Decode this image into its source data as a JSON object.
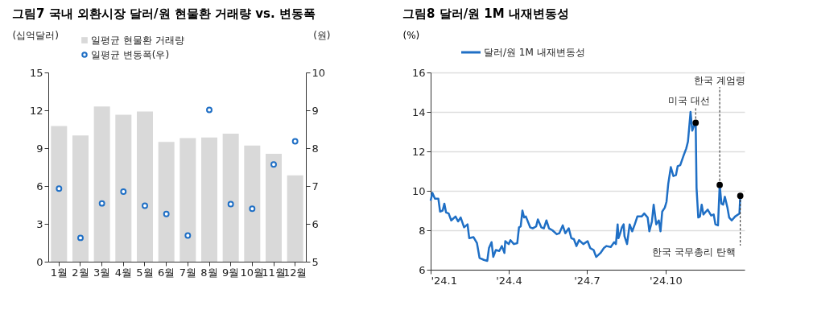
{
  "chart_data": [
    {
      "type": "bar",
      "title": "그림7 국내 외환시장 달러/원 현물환 거래량 vs. 변동폭",
      "ylabel": "(십억달러)",
      "y2label": "(원)",
      "categories": [
        "1월",
        "2월",
        "3월",
        "4월",
        "5월",
        "6월",
        "7월",
        "8월",
        "9월",
        "10월",
        "11월",
        "12월"
      ],
      "ylim": [
        0,
        15
      ],
      "yticks": [
        0,
        3,
        6,
        9,
        12,
        15
      ],
      "y2lim": [
        5,
        10
      ],
      "y2ticks": [
        5,
        6,
        7,
        8,
        9,
        10
      ],
      "series": [
        {
          "name": "일평균 현물환 거래량",
          "type": "bar",
          "color": "#d9d9d9",
          "values": [
            10.75,
            10.0,
            12.3,
            11.65,
            11.9,
            9.5,
            9.8,
            9.85,
            10.15,
            9.2,
            8.55,
            6.85
          ]
        },
        {
          "name": "일평균 변동폭(우)",
          "type": "scatter",
          "axis": "y2",
          "color": "#1f6fc5",
          "marker": "circle",
          "values": [
            6.93,
            5.63,
            6.54,
            6.85,
            6.48,
            6.26,
            5.69,
            9.01,
            6.52,
            6.4,
            7.57,
            8.18
          ]
        }
      ],
      "legend": "top left",
      "grid": false
    },
    {
      "type": "line",
      "title": "그림8 달러/원 1M 내재변동성",
      "ylabel": "(%)",
      "x": [
        "2024-01-01",
        "2024-01-03",
        "2024-01-06",
        "2024-01-10",
        "2024-01-12",
        "2024-01-15",
        "2024-01-17",
        "2024-01-19",
        "2024-01-22",
        "2024-01-25",
        "2024-01-30",
        "2024-02-02",
        "2024-02-05",
        "2024-02-09",
        "2024-02-13",
        "2024-02-15",
        "2024-02-20",
        "2024-02-24",
        "2024-02-27",
        "2024-03-03",
        "2024-03-07",
        "2024-03-09",
        "2024-03-12",
        "2024-03-14",
        "2024-03-17",
        "2024-03-21",
        "2024-03-24",
        "2024-03-27",
        "2024-03-28",
        "2024-04-01",
        "2024-04-03",
        "2024-04-07",
        "2024-04-11",
        "2024-04-13",
        "2024-04-15",
        "2024-04-17",
        "2024-04-19",
        "2024-04-21",
        "2024-04-26",
        "2024-04-29",
        "2024-05-03",
        "2024-05-05",
        "2024-05-09",
        "2024-05-12",
        "2024-05-15",
        "2024-05-18",
        "2024-05-22",
        "2024-05-27",
        "2024-05-30",
        "2024-06-03",
        "2024-06-06",
        "2024-06-10",
        "2024-06-13",
        "2024-06-16",
        "2024-06-19",
        "2024-06-22",
        "2024-06-27",
        "2024-07-02",
        "2024-07-05",
        "2024-07-09",
        "2024-07-12",
        "2024-07-17",
        "2024-07-21",
        "2024-07-24",
        "2024-07-29",
        "2024-08-02",
        "2024-08-04",
        "2024-08-06",
        "2024-08-07",
        "2024-08-09",
        "2024-08-11",
        "2024-08-13",
        "2024-08-14",
        "2024-08-17",
        "2024-08-20",
        "2024-08-23",
        "2024-08-26",
        "2024-08-29",
        "2024-09-03",
        "2024-09-06",
        "2024-09-10",
        "2024-09-12",
        "2024-09-15",
        "2024-09-17",
        "2024-09-20",
        "2024-09-23",
        "2024-09-25",
        "2024-09-27",
        "2024-09-30",
        "2024-10-02",
        "2024-10-04",
        "2024-10-07",
        "2024-10-10",
        "2024-10-13",
        "2024-10-15",
        "2024-10-18",
        "2024-10-22",
        "2024-10-25",
        "2024-10-27",
        "2024-10-30",
        "2024-11-01",
        "2024-11-03",
        "2024-11-05",
        "2024-11-06",
        "2024-11-08",
        "2024-11-10",
        "2024-11-12",
        "2024-11-14",
        "2024-11-19",
        "2024-11-23",
        "2024-11-26",
        "2024-11-28",
        "2024-12-01",
        "2024-12-03",
        "2024-12-05",
        "2024-12-07",
        "2024-12-09",
        "2024-12-12",
        "2024-12-14",
        "2024-12-17",
        "2024-12-21",
        "2024-12-26",
        "2024-12-27"
      ],
      "xlim": [
        "2024-01-01",
        "2025-01-01"
      ],
      "xticks": [
        {
          "value": "2024-01-01",
          "label": "'24.1"
        },
        {
          "value": "2024-04-01",
          "label": "'24.4"
        },
        {
          "value": "2024-07-01",
          "label": "'24.7"
        },
        {
          "value": "2024-10-01",
          "label": "'24.10"
        }
      ],
      "ylim": [
        6,
        16
      ],
      "yticks": [
        6,
        8,
        10,
        12,
        14,
        16
      ],
      "series": [
        {
          "name": "달러/원 1M 내재변동성",
          "color": "#1f6fc5",
          "values": [
            9.5,
            9.9,
            9.6,
            9.6,
            8.95,
            9.0,
            9.35,
            8.9,
            8.85,
            8.5,
            8.7,
            8.45,
            8.65,
            8.15,
            8.3,
            7.6,
            7.65,
            7.35,
            6.6,
            6.5,
            6.45,
            7.1,
            7.4,
            6.65,
            7.0,
            6.95,
            7.2,
            6.85,
            7.45,
            7.3,
            7.5,
            7.3,
            7.35,
            8.15,
            8.2,
            9.0,
            8.65,
            8.7,
            8.15,
            8.1,
            8.2,
            8.55,
            8.15,
            8.1,
            8.5,
            8.1,
            8.0,
            7.8,
            7.85,
            8.25,
            7.85,
            8.1,
            7.6,
            7.55,
            7.2,
            7.5,
            7.3,
            7.45,
            7.1,
            7.0,
            6.65,
            6.85,
            7.1,
            7.2,
            7.15,
            7.4,
            7.3,
            8.3,
            7.6,
            7.85,
            8.15,
            8.3,
            7.7,
            7.3,
            8.3,
            7.95,
            8.3,
            8.7,
            8.7,
            8.85,
            8.65,
            7.95,
            8.45,
            9.3,
            8.3,
            8.5,
            7.95,
            8.95,
            9.15,
            9.45,
            10.35,
            11.2,
            10.75,
            10.8,
            11.25,
            11.3,
            11.8,
            12.15,
            12.5,
            14.0,
            13.05,
            13.3,
            13.45,
            10.15,
            8.65,
            8.7,
            9.3,
            8.8,
            9.05,
            8.75,
            8.8,
            8.3,
            8.25,
            10.3,
            9.35,
            9.3,
            9.7,
            9.15,
            8.65,
            8.5,
            8.7,
            8.85,
            9.75
          ]
        }
      ],
      "annotations": [
        {
          "text": "미국 대선",
          "x": "2024-11-05",
          "y": 13.45
        },
        {
          "text": "한국 계엄령",
          "x": "2024-12-03",
          "y": 10.3
        },
        {
          "text": "한국 국무총리 탄핵",
          "x": "2024-12-27",
          "y": 9.75
        }
      ],
      "grid": "y",
      "legend": "top left"
    }
  ]
}
